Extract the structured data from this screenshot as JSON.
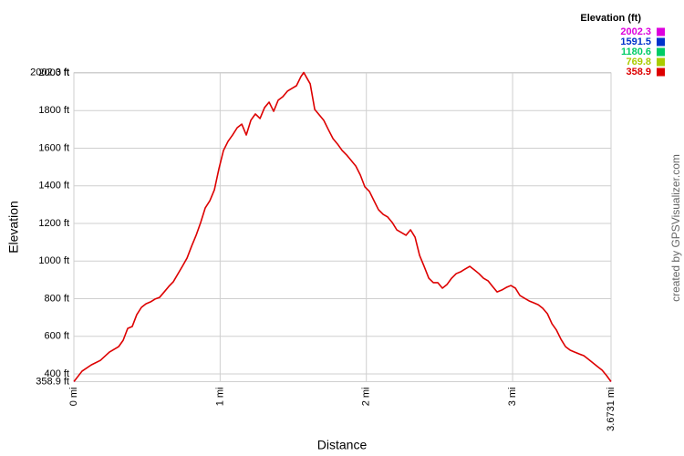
{
  "chart_data": {
    "type": "line",
    "x_label": "Distance",
    "y_label": "Elevation",
    "credit": "created by GPSVisualizer.com",
    "legend_title": "Elevation (ft)",
    "color_scale": [
      {
        "value": 2002.3,
        "color": "#dd00dd"
      },
      {
        "value": 1591.5,
        "color": "#0033cc"
      },
      {
        "value": 1180.6,
        "color": "#00cc66"
      },
      {
        "value": 769.8,
        "color": "#aacc00"
      },
      {
        "value": 358.9,
        "color": "#dd0000"
      }
    ],
    "xlim": [
      0,
      3.6731
    ],
    "ylim": [
      358.9,
      2002.3
    ],
    "xticks": [
      {
        "value": 0,
        "label": "0 mi"
      },
      {
        "value": 1,
        "label": "1 mi"
      },
      {
        "value": 2,
        "label": "2 mi"
      },
      {
        "value": 3,
        "label": "3 mi"
      },
      {
        "value": 3.6731,
        "label": "3.6731 mi"
      }
    ],
    "yticks": [
      {
        "value": 358.9,
        "label": "358.9 ft"
      },
      {
        "value": 400,
        "label": "400 ft"
      },
      {
        "value": 600,
        "label": "600 ft"
      },
      {
        "value": 800,
        "label": "800 ft"
      },
      {
        "value": 1000,
        "label": "1000 ft"
      },
      {
        "value": 1200,
        "label": "1200 ft"
      },
      {
        "value": 1400,
        "label": "1400 ft"
      },
      {
        "value": 1600,
        "label": "1600 ft"
      },
      {
        "value": 1800,
        "label": "1800 ft"
      },
      {
        "value": 2000,
        "label": "2000 ft"
      },
      {
        "value": 2002.3,
        "label": "2002.3 ft"
      }
    ],
    "grid": true,
    "x": [
      0,
      0.056,
      0.119,
      0.181,
      0.243,
      0.306,
      0.337,
      0.368,
      0.399,
      0.43,
      0.462,
      0.493,
      0.524,
      0.555,
      0.586,
      0.618,
      0.649,
      0.68,
      0.742,
      0.774,
      0.805,
      0.836,
      0.867,
      0.898,
      0.93,
      0.961,
      0.992,
      1.023,
      1.054,
      1.085,
      1.117,
      1.148,
      1.179,
      1.21,
      1.241,
      1.273,
      1.304,
      1.335,
      1.366,
      1.397,
      1.429,
      1.46,
      1.491,
      1.522,
      1.553,
      1.572,
      1.591,
      1.616,
      1.647,
      1.678,
      1.709,
      1.74,
      1.772,
      1.803,
      1.834,
      1.865,
      1.896,
      1.928,
      1.959,
      1.99,
      2.021,
      2.052,
      2.083,
      2.115,
      2.146,
      2.177,
      2.208,
      2.239,
      2.271,
      2.302,
      2.333,
      2.364,
      2.395,
      2.427,
      2.458,
      2.489,
      2.52,
      2.551,
      2.583,
      2.614,
      2.645,
      2.676,
      2.707,
      2.739,
      2.77,
      2.801,
      2.832,
      2.863,
      2.894,
      2.926,
      2.957,
      2.988,
      3.019,
      3.05,
      3.082,
      3.113,
      3.144,
      3.175,
      3.206,
      3.238,
      3.269,
      3.3,
      3.331,
      3.362,
      3.394,
      3.425,
      3.456,
      3.487,
      3.518,
      3.55,
      3.581,
      3.612,
      3.643,
      3.6731
    ],
    "values": [
      358.9,
      415,
      448,
      472,
      516,
      545,
      579,
      642,
      652,
      715,
      754,
      773,
      783,
      798,
      807,
      836,
      865,
      890,
      972,
      1016,
      1079,
      1137,
      1205,
      1282,
      1321,
      1379,
      1491,
      1588,
      1636,
      1670,
      1709,
      1728,
      1670,
      1748,
      1782,
      1758,
      1816,
      1845,
      1796,
      1855,
      1874,
      1903,
      1918,
      1932,
      1981,
      2002.3,
      1976,
      1942,
      1806,
      1777,
      1748,
      1699,
      1651,
      1622,
      1588,
      1564,
      1535,
      1505,
      1457,
      1394,
      1370,
      1321,
      1273,
      1248,
      1234,
      1205,
      1166,
      1152,
      1137,
      1166,
      1127,
      1030,
      972,
      909,
      885,
      885,
      856,
      875,
      909,
      933,
      943,
      958,
      972,
      953,
      933,
      909,
      895,
      865,
      836,
      846,
      860,
      870,
      856,
      817,
      802,
      788,
      778,
      768,
      749,
      720,
      667,
      633,
      584,
      545,
      526,
      516,
      506,
      497,
      478,
      458,
      439,
      420,
      391,
      358.9
    ]
  }
}
